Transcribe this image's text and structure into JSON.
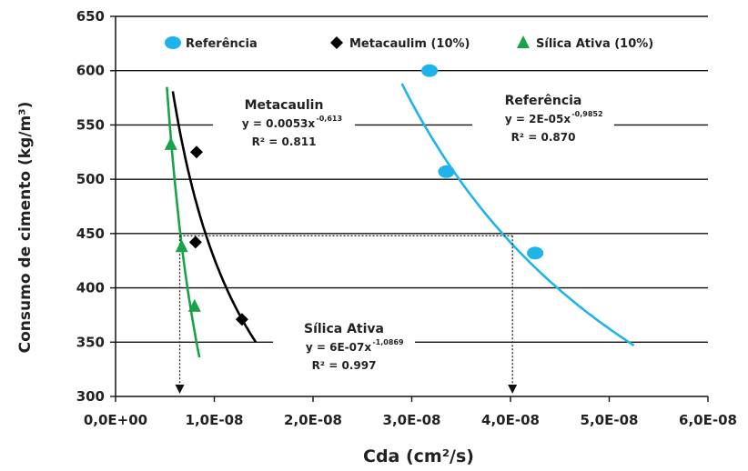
{
  "chart_data": {
    "type": "scatter",
    "xlabel": "Cda (cm²/s)",
    "ylabel": "Consumo de cimento (kg/m³)",
    "xlim": [
      0,
      6e-08
    ],
    "ylim": [
      300,
      650
    ],
    "x_ticks": [
      "0,0E+00",
      "1,0E-08",
      "2,0E-08",
      "3,0E-08",
      "4,0E-08",
      "5,0E-08",
      "6,0E-08"
    ],
    "y_ticks": [
      "300",
      "350",
      "400",
      "450",
      "500",
      "550",
      "600",
      "650"
    ],
    "grid": "horizontal",
    "legend_position": "top",
    "series": [
      {
        "name": "Referência",
        "marker": "circle",
        "color": "#1EB4EA",
        "points": [
          [
            3.18e-08,
            600
          ],
          [
            3.35e-08,
            507
          ],
          [
            4.25e-08,
            432
          ]
        ],
        "trend": {
          "label_title": "Referência",
          "eq_text": "y = 2E-05x",
          "eq_exp": "-0,9852",
          "r2_text": "R² = 0.870",
          "x_range": [
            2.9e-08,
            5.25e-08
          ],
          "y_range": [
            588,
            347
          ]
        }
      },
      {
        "name": "Metacaulim (10%)",
        "marker": "diamond",
        "color": "#000000",
        "points": [
          [
            8.2e-09,
            525
          ],
          [
            8.1e-09,
            442
          ],
          [
            1.28e-08,
            371
          ]
        ],
        "trend": {
          "label_title": "Metacaulin",
          "eq_text": "y = 0.0053x",
          "eq_exp": "-0,613",
          "r2_text": "R² = 0.811",
          "x_range": [
            5.8e-09,
            1.42e-08
          ],
          "y_range": [
            581,
            350
          ]
        }
      },
      {
        "name": "Sílica Ativa (10%)",
        "marker": "triangle",
        "color": "#17A34A",
        "points": [
          [
            5.6e-09,
            532
          ],
          [
            6.7e-09,
            438
          ],
          [
            8e-09,
            383
          ]
        ],
        "trend": {
          "label_title": "Sílica Ativa",
          "eq_text": "y = 6E-07x",
          "eq_exp": "-1,0869",
          "r2_text": "R² = 0.997",
          "x_range": [
            5.2e-09,
            8.5e-09
          ],
          "y_range": [
            585,
            336
          ]
        }
      }
    ],
    "annotations": {
      "reference_line_y": 448,
      "drop_x": [
        6.5e-09,
        4.02e-08
      ]
    }
  }
}
